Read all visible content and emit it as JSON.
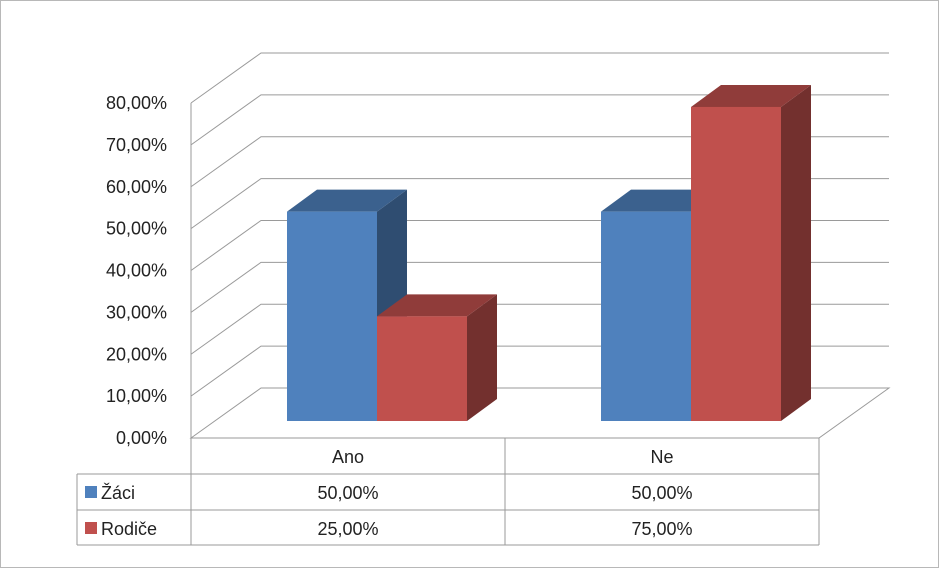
{
  "chart_data": {
    "type": "bar",
    "style": "3d-clustered-column-with-data-table",
    "categories": [
      "Ano",
      "Ne"
    ],
    "series": [
      {
        "name": "Žáci",
        "values": [
          0.5,
          0.5
        ],
        "color": "#4F81BD"
      },
      {
        "name": "Rodiče",
        "values": [
          0.25,
          0.75
        ],
        "color": "#C0504D"
      }
    ],
    "y_ticks": [
      "0,00%",
      "10,00%",
      "20,00%",
      "30,00%",
      "40,00%",
      "50,00%",
      "60,00%",
      "70,00%",
      "80,00%"
    ],
    "ylim": [
      0,
      0.8
    ],
    "grid": true,
    "legend": "data-table",
    "table_values": [
      [
        "50,00%",
        "50,00%"
      ],
      [
        "25,00%",
        "75,00%"
      ]
    ],
    "title": "",
    "xlabel": "",
    "ylabel": ""
  }
}
